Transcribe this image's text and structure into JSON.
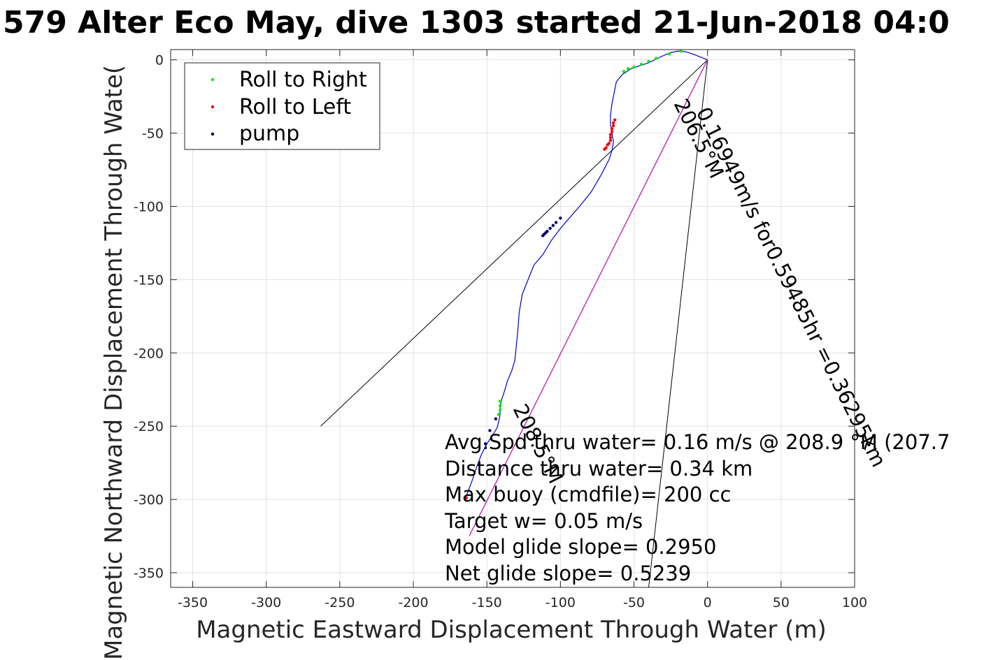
{
  "chart_data": {
    "type": "scatter",
    "title": "579 Alter Eco May, dive 1303 started 21-Jun-2018 04:0",
    "xlabel": "Magnetic Eastward Displacement Through Water (m)",
    "ylabel": "Magnetic Northward Displacement Through Wate(",
    "xlim": [
      -365,
      100
    ],
    "ylim": [
      -360,
      7
    ],
    "xticks": [
      -350,
      -300,
      -250,
      -200,
      -150,
      -100,
      -50,
      0,
      50,
      100
    ],
    "yticks": [
      0,
      -50,
      -100,
      -150,
      -200,
      -250,
      -300,
      -350
    ],
    "grid": true,
    "legend": {
      "placement": "top-left",
      "entries": [
        {
          "label": "Roll to Right",
          "color": "#00ee00"
        },
        {
          "label": "Roll to Left",
          "color": "#ee0000"
        },
        {
          "label": "pump",
          "color": "#000066"
        }
      ]
    },
    "colors": {
      "track": "#0000cc",
      "lines": "#000000",
      "heading": "#cc00cc"
    },
    "track": {
      "x": [
        0,
        -10,
        -15,
        -20,
        -25,
        -32,
        -40,
        -46,
        -52,
        -58,
        -62,
        -63,
        -65,
        -66,
        -66,
        -65,
        -64,
        -65,
        -67,
        -72,
        -79,
        -87,
        -94,
        -100,
        -106,
        -112,
        -118,
        -122,
        -126,
        -128,
        -129,
        -130,
        -131,
        -133,
        -136,
        -138,
        -140,
        -141,
        -141,
        -142,
        -143,
        -146,
        -150,
        -154,
        -157,
        -160,
        -163,
        -165
      ],
      "y": [
        0,
        4,
        5.5,
        6,
        5,
        2,
        -2,
        -4,
        -6,
        -10,
        -15,
        -20,
        -30,
        -38,
        -44,
        -50,
        -56,
        -62,
        -68,
        -78,
        -90,
        -100,
        -108,
        -115,
        -123,
        -133,
        -140,
        -150,
        -160,
        -172,
        -185,
        -195,
        -205,
        -212,
        -219,
        -226,
        -232,
        -237,
        -242,
        -247,
        -251,
        -256,
        -262,
        -270,
        -278,
        -287,
        -295,
        -300
      ]
    },
    "roll_right": {
      "x": [
        -57,
        -54,
        -50,
        -45,
        -40,
        -35,
        -26,
        -18,
        -141,
        -141,
        -141,
        -142
      ],
      "y": [
        -8,
        -6,
        -5,
        -3,
        -1,
        1,
        4,
        6,
        -233,
        -236,
        -239,
        -242
      ]
    },
    "roll_left": {
      "x": [
        -63,
        -64,
        -64,
        -65,
        -65,
        -66,
        -66,
        -66,
        -67,
        -68,
        -69,
        -70,
        -164
      ],
      "y": [
        -41,
        -43,
        -45,
        -47,
        -49,
        -51,
        -53,
        -55,
        -57,
        -58,
        -60,
        -61,
        -299
      ]
    },
    "pump": {
      "x": [
        -100,
        -103,
        -105,
        -107,
        -109,
        -110,
        -111,
        -112,
        -144,
        -148,
        -151
      ],
      "y": [
        -108,
        -111,
        -113,
        -115,
        -117,
        -118,
        -119,
        -120,
        -245,
        -253,
        -262
      ]
    },
    "lines": [
      {
        "x": [
          0,
          -263
        ],
        "y": [
          0,
          -250
        ],
        "color": "#000000"
      },
      {
        "x": [
          0,
          -40
        ],
        "y": [
          0,
          -360
        ],
        "color": "#000000"
      },
      {
        "x": [
          0,
          -162
        ],
        "y": [
          0,
          -325
        ],
        "color": "#000000"
      },
      {
        "x": [
          0,
          -162
        ],
        "y": [
          0,
          -325
        ],
        "color": "#cc00cc"
      }
    ],
    "annotations": [
      "Avg.Spd thru water=  0.16 m/s @ 208.9 °M (207.7",
      "Distance thru water=  0.34 km",
      "Max buoy (cmdfile)= 200 cc",
      "Target w= 0.05 m/s",
      "Model glide slope= 0.2950",
      "Net glide slope= 0.5239"
    ],
    "rotated_annotations": [
      "206.5°M",
      "0.16949m/s for0.59485hr =0.36295km",
      "208.5°M"
    ]
  }
}
